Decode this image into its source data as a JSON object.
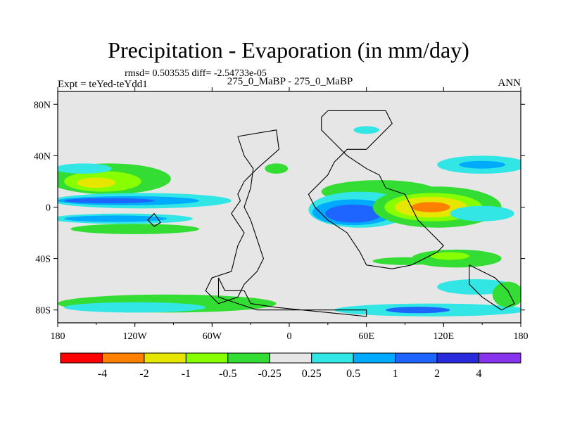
{
  "chart_data": {
    "type": "heatmap",
    "title": "Precipitation - Evaporation (in mm/day)",
    "stats": "rmsd= 0.503535 diff= -2.54733e-05",
    "left_label": "Expt = teYed-teYdd1",
    "center_label": "275_0_MaBP - 275_0_MaBP",
    "right_label": "ANN",
    "x_axis": {
      "range": [
        -180,
        180
      ],
      "ticks": [
        {
          "value": -180,
          "label": "180"
        },
        {
          "value": -120,
          "label": "120W"
        },
        {
          "value": -60,
          "label": "60W"
        },
        {
          "value": 0,
          "label": "0"
        },
        {
          "value": 60,
          "label": "60E"
        },
        {
          "value": 120,
          "label": "120E"
        },
        {
          "value": 180,
          "label": "180"
        }
      ]
    },
    "y_axis": {
      "range": [
        -90,
        90
      ],
      "ticks": [
        {
          "value": 80,
          "label": "80N"
        },
        {
          "value": 40,
          "label": "40N"
        },
        {
          "value": 0,
          "label": "0"
        },
        {
          "value": -40,
          "label": "40S"
        },
        {
          "value": -80,
          "label": "80S"
        }
      ]
    },
    "colorbar": {
      "colors": [
        "#ff0000",
        "#ff8000",
        "#e6e600",
        "#88ff00",
        "#33dd33",
        "#e6e6e6",
        "#33e6e6",
        "#00aaff",
        "#1e64ff",
        "#2a2add",
        "#8833ee"
      ],
      "labels": [
        "-4",
        "-2",
        "-1",
        "-0.5",
        "-0.25",
        "0.25",
        "0.5",
        "1",
        "2",
        "4"
      ]
    },
    "background_color": "#e6e6e6",
    "regions": [
      {
        "level": -0.375,
        "lon": -140,
        "lat": 22,
        "rlon": 48,
        "rlat": 12
      },
      {
        "level": -0.75,
        "lon": -145,
        "lat": 20,
        "rlon": 30,
        "rlat": 8
      },
      {
        "level": -1.5,
        "lon": -150,
        "lat": 19,
        "rlon": 15,
        "rlat": 4
      },
      {
        "level": 0.375,
        "lon": -115,
        "lat": 5,
        "rlon": 70,
        "rlat": 6
      },
      {
        "level": 0.75,
        "lon": -125,
        "lat": 5,
        "rlon": 55,
        "rlat": 3.5
      },
      {
        "level": 1.5,
        "lon": -140,
        "lat": 5,
        "rlon": 35,
        "rlat": 2
      },
      {
        "level": 0.375,
        "lon": -130,
        "lat": -9,
        "rlon": 55,
        "rlat": 4
      },
      {
        "level": 0.75,
        "lon": -135,
        "lat": -9,
        "rlon": 40,
        "rlat": 2.5
      },
      {
        "level": -0.375,
        "lon": -120,
        "lat": -17,
        "rlon": 50,
        "rlat": 4
      },
      {
        "level": 0.375,
        "lon": -160,
        "lat": 30,
        "rlon": 22,
        "rlat": 4
      },
      {
        "level": -0.375,
        "lon": -10,
        "lat": 30,
        "rlon": 9,
        "rlat": 4
      },
      {
        "level": -0.375,
        "lon": -95,
        "lat": -75,
        "rlon": 85,
        "rlat": 7
      },
      {
        "level": 0.375,
        "lon": -120,
        "lat": -78,
        "rlon": 55,
        "rlat": 4
      },
      {
        "level": -0.375,
        "lon": 70,
        "lat": 12,
        "rlon": 45,
        "rlat": 9
      },
      {
        "level": 0.375,
        "lon": 55,
        "lat": -2,
        "rlon": 40,
        "rlat": 14
      },
      {
        "level": 0.75,
        "lon": 50,
        "lat": -4,
        "rlon": 32,
        "rlat": 10
      },
      {
        "level": 1.5,
        "lon": 50,
        "lat": -5,
        "rlon": 22,
        "rlat": 7
      },
      {
        "level": -0.375,
        "lon": 115,
        "lat": 0,
        "rlon": 50,
        "rlat": 16
      },
      {
        "level": -0.75,
        "lon": 112,
        "lat": 0,
        "rlon": 38,
        "rlat": 11
      },
      {
        "level": -1.5,
        "lon": 110,
        "lat": 0,
        "rlon": 28,
        "rlat": 8
      },
      {
        "level": -3,
        "lon": 110,
        "lat": 0,
        "rlon": 15,
        "rlat": 4
      },
      {
        "level": 0.375,
        "lon": 150,
        "lat": -5,
        "rlon": 25,
        "rlat": 6
      },
      {
        "level": 0.375,
        "lon": 150,
        "lat": 33,
        "rlon": 35,
        "rlat": 7
      },
      {
        "level": 0.75,
        "lon": 150,
        "lat": 33,
        "rlon": 18,
        "rlat": 3
      },
      {
        "level": -0.375,
        "lon": 130,
        "lat": -40,
        "rlon": 35,
        "rlat": 7
      },
      {
        "level": -0.75,
        "lon": 125,
        "lat": -38,
        "rlon": 15,
        "rlat": 3
      },
      {
        "level": 0.375,
        "lon": 145,
        "lat": -62,
        "rlon": 30,
        "rlat": 6
      },
      {
        "level": 0.375,
        "lon": 110,
        "lat": -80,
        "rlon": 75,
        "rlat": 5
      },
      {
        "level": 1.5,
        "lon": 100,
        "lat": -80,
        "rlon": 25,
        "rlat": 2.5
      },
      {
        "level": -0.375,
        "lon": 170,
        "lat": -68,
        "rlon": 12,
        "rlat": 10
      },
      {
        "level": -0.375,
        "lon": 90,
        "lat": -42,
        "rlon": 25,
        "rlat": 3
      },
      {
        "level": 0.375,
        "lon": 60,
        "lat": 60,
        "rlon": 10,
        "rlat": 3
      }
    ],
    "coastlines": [
      [
        [
          -40,
          55
        ],
        [
          -10,
          60
        ],
        [
          -8,
          45
        ],
        [
          -25,
          30
        ],
        [
          -30,
          25
        ],
        [
          -35,
          20
        ],
        [
          -40,
          10
        ],
        [
          -38,
          5
        ],
        [
          -45,
          -5
        ],
        [
          -35,
          -20
        ],
        [
          -40,
          -30
        ],
        [
          -45,
          -50
        ],
        [
          -60,
          -55
        ],
        [
          -65,
          -65
        ],
        [
          -55,
          -75
        ],
        [
          -40,
          -70
        ],
        [
          -35,
          -60
        ],
        [
          -25,
          -50
        ],
        [
          -20,
          -40
        ],
        [
          -25,
          -25
        ],
        [
          -30,
          -10
        ],
        [
          -35,
          0
        ],
        [
          -30,
          15
        ],
        [
          -28,
          30
        ],
        [
          -35,
          40
        ],
        [
          -40,
          55
        ]
      ],
      [
        [
          25,
          70
        ],
        [
          30,
          75
        ],
        [
          75,
          75
        ],
        [
          80,
          65
        ],
        [
          70,
          55
        ],
        [
          60,
          45
        ],
        [
          45,
          45
        ],
        [
          35,
          35
        ],
        [
          30,
          25
        ],
        [
          15,
          10
        ],
        [
          20,
          0
        ],
        [
          30,
          -10
        ],
        [
          45,
          -20
        ],
        [
          55,
          -35
        ],
        [
          60,
          -45
        ],
        [
          80,
          -48
        ],
        [
          95,
          -45
        ],
        [
          105,
          -40
        ],
        [
          115,
          -35
        ],
        [
          120,
          -30
        ],
        [
          110,
          -20
        ],
        [
          100,
          -10
        ],
        [
          95,
          0
        ],
        [
          90,
          10
        ],
        [
          75,
          15
        ],
        [
          70,
          25
        ],
        [
          60,
          30
        ],
        [
          45,
          40
        ],
        [
          35,
          50
        ],
        [
          25,
          60
        ],
        [
          25,
          70
        ]
      ],
      [
        [
          -55,
          -55
        ],
        [
          -50,
          -65
        ],
        [
          -35,
          -65
        ],
        [
          -30,
          -75
        ],
        [
          -10,
          -78
        ],
        [
          60,
          -85
        ],
        [
          60,
          -80
        ],
        [
          -25,
          -80
        ],
        [
          -40,
          -75
        ],
        [
          -55,
          -70
        ],
        [
          -55,
          -55
        ]
      ],
      [
        [
          140,
          -45
        ],
        [
          150,
          -50
        ],
        [
          160,
          -55
        ],
        [
          170,
          -65
        ],
        [
          175,
          -75
        ],
        [
          165,
          -80
        ],
        [
          150,
          -70
        ],
        [
          140,
          -60
        ],
        [
          140,
          -45
        ]
      ],
      [
        [
          -110,
          -10
        ],
        [
          -105,
          -15
        ],
        [
          -100,
          -12
        ],
        [
          -105,
          -5
        ],
        [
          -110,
          -10
        ]
      ]
    ]
  }
}
